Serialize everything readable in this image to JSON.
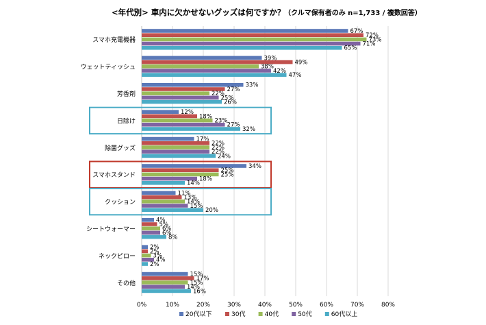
{
  "chart_data": {
    "type": "bar",
    "orientation": "horizontal",
    "title": "<年代別> 車内に欠かせないグッズは何ですか？",
    "subtitle": "（クルマ保有者のみ n=1,733 / 複数回答）",
    "categories": [
      "スマホ充電機器",
      "ウェットティッシュ",
      "芳香剤",
      "日除け",
      "除菌グッズ",
      "スマホスタンド",
      "クッション",
      "シートウォーマー",
      "ネックピロー",
      "その他"
    ],
    "series": [
      {
        "name": "20代以下",
        "color": "#5b79b8",
        "values": [
          67,
          39,
          33,
          12,
          17,
          34,
          11,
          4,
          2,
          15
        ]
      },
      {
        "name": "30代",
        "color": "#c0504d",
        "values": [
          72,
          49,
          27,
          18,
          22,
          25,
          13,
          5,
          2,
          17
        ]
      },
      {
        "name": "40代",
        "color": "#9bbb59",
        "values": [
          73,
          38,
          22,
          23,
          22,
          25,
          14,
          6,
          3,
          15
        ]
      },
      {
        "name": "50代",
        "color": "#8064a2",
        "values": [
          71,
          42,
          25,
          27,
          22,
          18,
          15,
          6,
          4,
          14
        ]
      },
      {
        "name": "60代以上",
        "color": "#4bacc6",
        "values": [
          65,
          47,
          26,
          32,
          24,
          14,
          20,
          8,
          2,
          16
        ]
      }
    ],
    "value_suffix": "%",
    "xlim": [
      0,
      80
    ],
    "xticks": [
      0,
      10,
      20,
      30,
      40,
      50,
      60,
      70,
      80
    ],
    "tick_suffix": "%",
    "grid": true,
    "legend_position": "bottom",
    "highlighted_categories": [
      {
        "category": "日除け",
        "color": "#4bacc6"
      },
      {
        "category": "スマホスタンド",
        "color": "#c0392b"
      },
      {
        "category": "クッション",
        "color": "#4bacc6"
      }
    ]
  }
}
